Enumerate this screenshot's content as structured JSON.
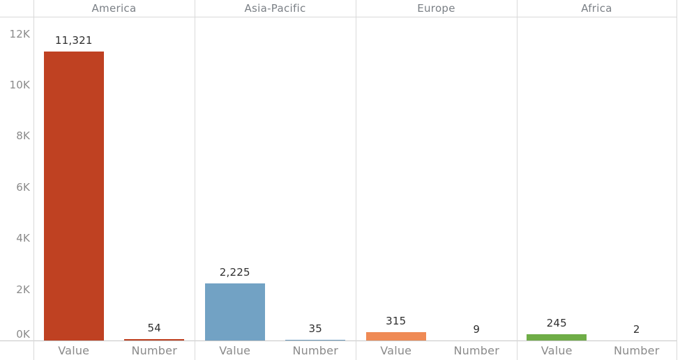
{
  "chart_data": {
    "type": "bar",
    "title": "",
    "layout_hint": "small-multiples: 4 region panels, each with Value and Number bars; vertical panel borders only, no horizontal gridlines; legend none",
    "y_axis": {
      "ticks": [
        "0K",
        "2K",
        "4K",
        "6K",
        "8K",
        "10K",
        "12K"
      ],
      "tick_values": [
        0,
        2000,
        4000,
        6000,
        8000,
        10000,
        12000
      ],
      "range": [
        0,
        12670
      ]
    },
    "x_axis": {
      "bar_categories": [
        "Value",
        "Number"
      ]
    },
    "panels": [
      {
        "region": "America",
        "color": "#bf4122",
        "bars": [
          {
            "label": "Value",
            "value": 11321,
            "display": "11,321"
          },
          {
            "label": "Number",
            "value": 54,
            "display": "54"
          }
        ]
      },
      {
        "region": "Asia-Pacific",
        "color": "#72a2c4",
        "bars": [
          {
            "label": "Value",
            "value": 2225,
            "display": "2,225"
          },
          {
            "label": "Number",
            "value": 35,
            "display": "35"
          }
        ]
      },
      {
        "region": "Europe",
        "color": "#ef8a55",
        "bars": [
          {
            "label": "Value",
            "value": 315,
            "display": "315"
          },
          {
            "label": "Number",
            "value": 9,
            "display": "9"
          }
        ]
      },
      {
        "region": "Africa",
        "color": "#6fad47",
        "bars": [
          {
            "label": "Value",
            "value": 245,
            "display": "245"
          },
          {
            "label": "Number",
            "value": 2,
            "display": "2"
          }
        ]
      }
    ],
    "style": {
      "tick_label_color": "#8a8a8a",
      "header_label_color": "#7a7f85",
      "value_label_color": "#2e2e2e",
      "panel_border_color": "#d9d9d9",
      "axis_line_color": "#c6c6c6",
      "background": "#ffffff"
    }
  }
}
